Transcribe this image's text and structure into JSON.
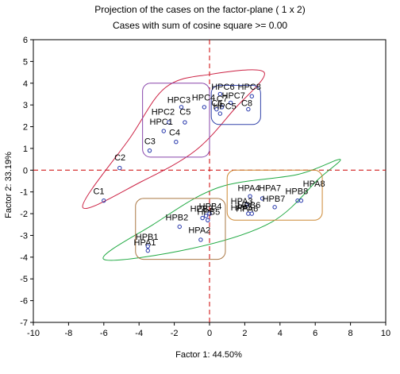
{
  "chart_data": {
    "type": "scatter",
    "title": "Projection of the cases on the factor-plane (  1 x    2)",
    "subtitle": "Cases with sum of cosine square >=   0.00",
    "xlabel": "Factor 1: 44.50%",
    "ylabel": "Factor 2: 33.19%",
    "xlim": [
      -10,
      10
    ],
    "ylim": [
      -7,
      6
    ],
    "xticks": [
      "-10",
      "-8",
      "-6",
      "-4",
      "-2",
      "0",
      "2",
      "4",
      "6",
      "8",
      "10"
    ],
    "yticks": [
      "-7",
      "-6",
      "-5",
      "-4",
      "-3",
      "-2",
      "-1",
      "0",
      "1",
      "2",
      "3",
      "4",
      "5",
      "6"
    ],
    "grid": false,
    "reference_lines": {
      "x": 0,
      "y": 0,
      "color": "#cc0000",
      "style": "dashed"
    },
    "points": [
      {
        "label": "C1",
        "x": -6.0,
        "y": -1.4
      },
      {
        "label": "C2",
        "x": -5.1,
        "y": 0.1
      },
      {
        "label": "C3",
        "x": -3.4,
        "y": 0.9
      },
      {
        "label": "C4",
        "x": -1.9,
        "y": 1.3
      },
      {
        "label": "C5",
        "x": -1.4,
        "y": 2.2
      },
      {
        "label": "HPC1",
        "x": -2.6,
        "y": 1.8
      },
      {
        "label": "HPC2",
        "x": -2.3,
        "y": 2.2
      },
      {
        "label": "HPC3",
        "x": -1.6,
        "y": 2.9
      },
      {
        "label": "HPC4",
        "x": -0.3,
        "y": 2.9
      },
      {
        "label": "HPC5",
        "x": 0.6,
        "y": 2.6
      },
      {
        "label": "HPC6",
        "x": 0.6,
        "y": 3.5
      },
      {
        "label": "HPC7",
        "x": 1.2,
        "y": 3.1
      },
      {
        "label": "HPC8",
        "x": 2.4,
        "y": 3.4
      },
      {
        "label": "C6",
        "x": 0.4,
        "y": 2.8
      },
      {
        "label": "C7",
        "x": 0.7,
        "y": 2.9
      },
      {
        "label": "C8",
        "x": 2.2,
        "y": 2.8
      },
      {
        "label": "HPB1",
        "x": -3.5,
        "y": -3.5
      },
      {
        "label": "HPB2",
        "x": -1.7,
        "y": -2.6
      },
      {
        "label": "HPB3",
        "x": -0.4,
        "y": -2.2
      },
      {
        "label": "HPB4",
        "x": -0.2,
        "y": -2.1
      },
      {
        "label": "HPB5",
        "x": -0.1,
        "y": -2.3
      },
      {
        "label": "HPB6",
        "x": 0.0,
        "y": -2.0
      },
      {
        "label": "HPB7",
        "x": 3.7,
        "y": -1.7
      },
      {
        "label": "HPB8",
        "x": 5.2,
        "y": -1.4
      },
      {
        "label": "HPA1",
        "x": -3.5,
        "y": -3.7
      },
      {
        "label": "HPA2",
        "x": -0.5,
        "y": -3.2
      },
      {
        "label": "HPA3",
        "x": 2.1,
        "y": -1.6
      },
      {
        "label": "HPA4",
        "x": 2.3,
        "y": -1.2
      },
      {
        "label": "HPA5",
        "x": 2.2,
        "y": -2.0
      },
      {
        "label": "HPA6",
        "x": 2.4,
        "y": -2.0
      },
      {
        "label": "HPA7",
        "x": 3.0,
        "y": -1.3
      },
      {
        "label": "HPA8",
        "x": 5.0,
        "y": -1.4
      }
    ],
    "point_labels": [
      {
        "text": "C1",
        "x": -6.6,
        "y": -1.1
      },
      {
        "text": "C2",
        "x": -5.4,
        "y": 0.45
      },
      {
        "text": "C3",
        "x": -3.7,
        "y": 1.2
      },
      {
        "text": "C4",
        "x": -2.3,
        "y": 1.6
      },
      {
        "text": "C5",
        "x": -1.7,
        "y": 2.55
      },
      {
        "text": "HPC1",
        "x": -3.4,
        "y": 2.1
      },
      {
        "text": "HPC2",
        "x": -3.3,
        "y": 2.55
      },
      {
        "text": "HPC3",
        "x": -2.4,
        "y": 3.1
      },
      {
        "text": "HPC4",
        "x": -1.0,
        "y": 3.2
      },
      {
        "text": "HPC5",
        "x": 0.2,
        "y": 2.8
      },
      {
        "text": "HPC6",
        "x": 0.1,
        "y": 3.7
      },
      {
        "text": "HPC7",
        "x": 0.7,
        "y": 3.3
      },
      {
        "text": "HPC8",
        "x": 1.6,
        "y": 3.7
      },
      {
        "text": "C6",
        "x": 0.1,
        "y": 2.95
      },
      {
        "text": "C7",
        "x": 0.4,
        "y": 3.15
      },
      {
        "text": "C8",
        "x": 1.8,
        "y": 2.95
      },
      {
        "text": "HPB1",
        "x": -4.2,
        "y": -3.2
      },
      {
        "text": "HPB2",
        "x": -2.5,
        "y": -2.3
      },
      {
        "text": "HPB3",
        "x": -1.1,
        "y": -1.9
      },
      {
        "text": "HPB4",
        "x": -0.6,
        "y": -1.8
      },
      {
        "text": "HPB5",
        "x": -0.7,
        "y": -2.05
      },
      {
        "text": "HPB6",
        "x": 1.6,
        "y": -1.75
      },
      {
        "text": "HPB7",
        "x": 3.0,
        "y": -1.45
      },
      {
        "text": "HPB8",
        "x": 4.3,
        "y": -1.1
      },
      {
        "text": "HPA1",
        "x": -4.3,
        "y": -3.45
      },
      {
        "text": "HPA2",
        "x": -1.2,
        "y": -2.9
      },
      {
        "text": "HPA3",
        "x": 1.2,
        "y": -1.55
      },
      {
        "text": "HPA4",
        "x": 1.6,
        "y": -0.95
      },
      {
        "text": "HPA5",
        "x": 1.2,
        "y": -1.85
      },
      {
        "text": "HPA6",
        "x": 1.5,
        "y": -1.9
      },
      {
        "text": "HPA7",
        "x": 2.8,
        "y": -0.95
      },
      {
        "text": "HPA8",
        "x": 5.3,
        "y": -0.75
      }
    ],
    "enclosures": [
      {
        "shape": "curve",
        "color": "#cc2244",
        "points": [
          [
            -7.2,
            -1.7
          ],
          [
            -4.5,
            1.5
          ],
          [
            -2.5,
            3.8
          ],
          [
            0.0,
            4.4
          ],
          [
            3.1,
            4.5
          ],
          [
            1.4,
            2.8
          ],
          [
            -0.8,
            0.9
          ],
          [
            -3.8,
            -0.5
          ],
          [
            -7.2,
            -1.7
          ]
        ]
      },
      {
        "shape": "curve",
        "color": "#22aa44",
        "points": [
          [
            -6.0,
            -4.1
          ],
          [
            -1.0,
            -3.6
          ],
          [
            3.5,
            -2.4
          ],
          [
            6.2,
            -0.4
          ],
          [
            7.4,
            0.5
          ],
          [
            5.0,
            -0.2
          ],
          [
            0.5,
            -0.8
          ],
          [
            -3.2,
            -2.5
          ],
          [
            -6.0,
            -4.1
          ]
        ]
      },
      {
        "shape": "box",
        "color": "#8844aa",
        "x0": -3.8,
        "y0": 0.6,
        "x1": 0.0,
        "y1": 4.0
      },
      {
        "shape": "box",
        "color": "#3344aa",
        "x0": 0.1,
        "y0": 2.1,
        "x1": 2.9,
        "y1": 3.9
      },
      {
        "shape": "box",
        "color": "#aa7744",
        "x0": -4.2,
        "y0": -4.1,
        "x1": 0.9,
        "y1": -1.3
      },
      {
        "shape": "box",
        "color": "#cc8833",
        "x0": 1.0,
        "y0": -2.3,
        "x1": 6.4,
        "y1": 0.0
      }
    ],
    "colors": {
      "points": "#2233aa",
      "axes": "#000000"
    }
  }
}
